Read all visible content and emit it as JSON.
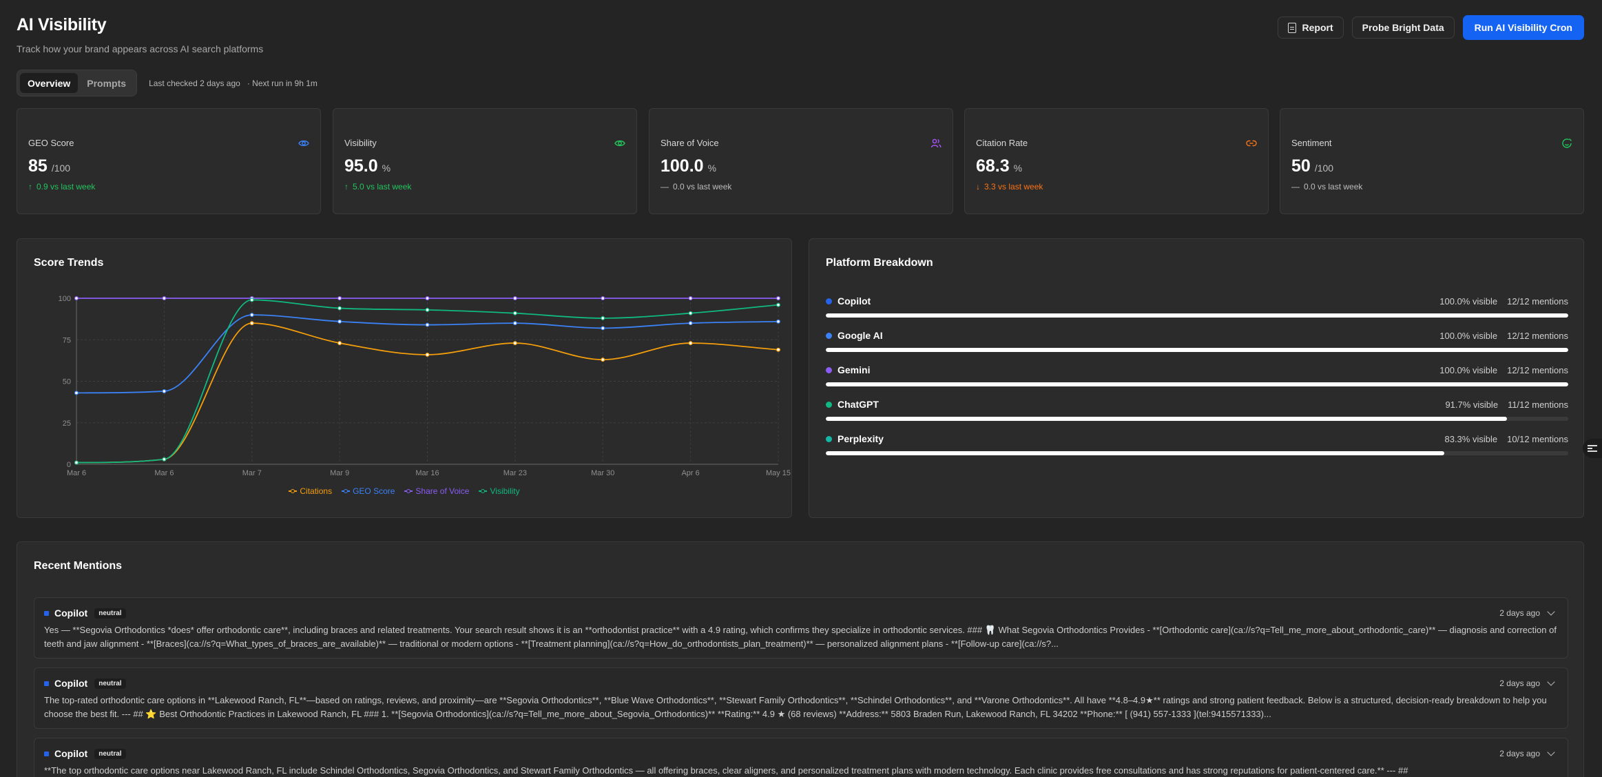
{
  "header": {
    "title": "AI Visibility",
    "subtitle": "Track how your brand appears across AI search platforms"
  },
  "actions": {
    "report": "Report",
    "probe": "Probe Bright Data",
    "run": "Run AI Visibility Cron"
  },
  "tabs": [
    {
      "label": "Overview",
      "active": true
    },
    {
      "label": "Prompts",
      "active": false
    }
  ],
  "status": {
    "last_checked": "Last checked 2 days ago",
    "next_run": "· Next run in 9h 1m"
  },
  "metrics": [
    {
      "label": "GEO Score",
      "value": "85",
      "unit": "/100",
      "delta": "0.9 vs last week",
      "trend": "up",
      "icon": "eye-icon",
      "color": "#3b82f6"
    },
    {
      "label": "Visibility",
      "value": "95.0",
      "unit": "%",
      "delta": "5.0 vs last week",
      "trend": "up",
      "icon": "eye-icon",
      "color": "#22c55e"
    },
    {
      "label": "Share of Voice",
      "value": "100.0",
      "unit": "%",
      "delta": "0.0 vs last week",
      "trend": "flat",
      "icon": "users-icon",
      "color": "#a855f7"
    },
    {
      "label": "Citation Rate",
      "value": "68.3",
      "unit": "%",
      "delta": "3.3 vs last week",
      "trend": "down",
      "icon": "link-icon",
      "color": "#f97316"
    },
    {
      "label": "Sentiment",
      "value": "50",
      "unit": "/100",
      "delta": "0.0 vs last week",
      "trend": "flat",
      "icon": "smile-icon",
      "color": "#22c55e"
    }
  ],
  "trends": {
    "title": "Score Trends"
  },
  "chart_data": {
    "type": "line",
    "title": "Score Trends",
    "x": [
      "Mar 6",
      "Mar 6",
      "Mar 7",
      "Mar 9",
      "Mar 16",
      "Mar 23",
      "Mar 30",
      "Apr 6",
      "May 15"
    ],
    "ylim": [
      0,
      100
    ],
    "yticks": [
      "0",
      "25",
      "50",
      "75",
      "100"
    ],
    "grid": true,
    "legend_position": "bottom",
    "series": [
      {
        "name": "Citations",
        "color": "#f59e0b",
        "values": [
          1,
          3,
          85,
          73,
          66,
          73,
          63,
          73,
          69
        ]
      },
      {
        "name": "GEO Score",
        "color": "#3b82f6",
        "values": [
          43,
          44,
          90,
          86,
          84,
          85,
          82,
          85,
          86
        ]
      },
      {
        "name": "Share of Voice",
        "color": "#8b5cf6",
        "values": [
          100,
          100,
          100,
          100,
          100,
          100,
          100,
          100,
          100
        ]
      },
      {
        "name": "Visibility",
        "color": "#10b981",
        "values": [
          1,
          3,
          99,
          94,
          93,
          91,
          88,
          91,
          96
        ]
      }
    ]
  },
  "platform": {
    "title": "Platform Breakdown",
    "items": [
      {
        "name": "Copilot",
        "color": "#2563eb",
        "visible": "100.0% visible",
        "mentions": "12/12 mentions",
        "fraction": 1.0
      },
      {
        "name": "Google AI",
        "color": "#3b82f6",
        "visible": "100.0% visible",
        "mentions": "12/12 mentions",
        "fraction": 1.0
      },
      {
        "name": "Gemini",
        "color": "#8b5cf6",
        "visible": "100.0% visible",
        "mentions": "12/12 mentions",
        "fraction": 1.0
      },
      {
        "name": "ChatGPT",
        "color": "#10b981",
        "visible": "91.7% visible",
        "mentions": "11/12 mentions",
        "fraction": 0.917
      },
      {
        "name": "Perplexity",
        "color": "#14b8a6",
        "visible": "83.3% visible",
        "mentions": "10/12 mentions",
        "fraction": 0.833
      }
    ]
  },
  "recent": {
    "title": "Recent Mentions",
    "items": [
      {
        "source": "Copilot",
        "sentiment": "neutral",
        "time": "2 days ago",
        "text": "Yes — **Segovia Orthodontics *does* offer orthodontic care**, including braces and related treatments. Your search result shows it is an **orthodontist practice** with a 4.9 rating, which confirms they specialize in orthodontic services. ### 🦷 What Segovia Orthodontics Provides - **[Orthodontic care](ca://s?q=Tell_me_more_about_orthodontic_care)** — diagnosis and correction of teeth and jaw alignment - **[Braces](ca://s?q=What_types_of_braces_are_available)** — traditional or modern options - **[Treatment planning](ca://s?q=How_do_orthodontists_plan_treatment)** — personalized alignment plans - **[Follow-up care](ca://s?..."
      },
      {
        "source": "Copilot",
        "sentiment": "neutral",
        "time": "2 days ago",
        "text": "The top-rated orthodontic care options in **Lakewood Ranch, FL**—based on ratings, reviews, and proximity—are **Segovia Orthodontics**, **Blue Wave Orthodontics**, **Stewart Family Orthodontics**, **Schindel Orthodontics**, and **Varone Orthodontics**. All have **4.8–4.9★** ratings and strong patient feedback. Below is a structured, decision-ready breakdown to help you choose the best fit. --- ## ⭐ Best Orthodontic Practices in Lakewood Ranch, FL ### 1. **[Segovia Orthodontics](ca://s?q=Tell_me_more_about_Segovia_Orthodontics)** **Rating:** 4.9 ★ (68 reviews) **Address:** 5803 Braden Run, Lakewood Ranch, FL 34202 **Phone:** [ (941) 557-1333 ](tel:9415571333)..."
      },
      {
        "source": "Copilot",
        "sentiment": "neutral",
        "time": "2 days ago",
        "text": "**The top orthodontic care options near Lakewood Ranch, FL include Schindel Orthodontics, Segovia Orthodontics, and Stewart Family Orthodontics — all offering braces, clear aligners, and personalized treatment plans with modern technology. Each clinic provides free consultations and has strong reputations for patient-centered care.** --- ##"
      }
    ]
  }
}
